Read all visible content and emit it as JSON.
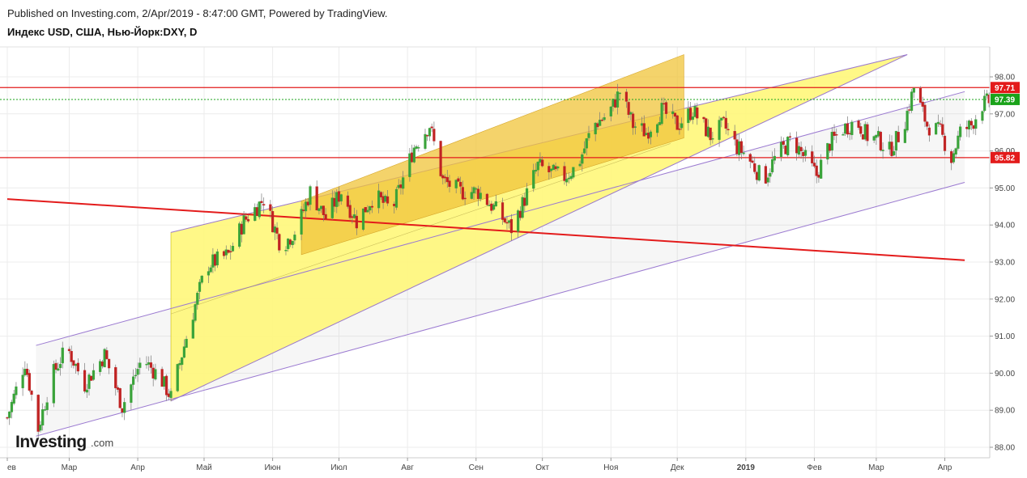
{
  "header": {
    "published": "Published on Investing.com, 2/Apr/2019 - 8:47:00 GMT, Powered by TradingView.",
    "title": "Индекс USD, США, Нью-Йорк:DXY, D"
  },
  "logo": {
    "main": "Investing",
    "domain": ".com"
  },
  "colors": {
    "up": "#3aa33a",
    "down": "#c02323",
    "level": "#e31b1b",
    "channel": "#9b7ad1",
    "triangle_fill": "#fff77a",
    "box_fill": "#f0c43a",
    "current_price": "#1aa31a"
  },
  "chart_data": {
    "type": "candlestick",
    "symbol": "DXY",
    "timeframe": "D",
    "ylim": [
      87.8,
      98.6
    ],
    "y_ticks": [
      "88.00",
      "89.00",
      "90.00",
      "91.00",
      "92.00",
      "93.00",
      "94.00",
      "95.00",
      "96.00",
      "97.00",
      "98.00"
    ],
    "x_ticks": [
      {
        "label": "ев",
        "day": 0
      },
      {
        "label": "Мар",
        "day": 28
      },
      {
        "label": "Апр",
        "day": 59
      },
      {
        "label": "Май",
        "day": 89
      },
      {
        "label": "Июн",
        "day": 120
      },
      {
        "label": "Июл",
        "day": 150
      },
      {
        "label": "Авг",
        "day": 181
      },
      {
        "label": "Сен",
        "day": 212
      },
      {
        "label": "Окт",
        "day": 242
      },
      {
        "label": "Ноя",
        "day": 273
      },
      {
        "label": "Дек",
        "day": 303
      },
      {
        "label": "2019",
        "day": 334
      },
      {
        "label": "Фев",
        "day": 365
      },
      {
        "label": "Мар",
        "day": 393
      },
      {
        "label": "Апр",
        "day": 424
      }
    ],
    "price_tags": [
      {
        "label": "97.71",
        "value": 97.71,
        "color": "#e31b1b"
      },
      {
        "label": "97.39",
        "value": 97.39,
        "color": "#1aa31a"
      },
      {
        "label": "95.82",
        "value": 95.82,
        "color": "#e31b1b"
      }
    ],
    "levels": [
      {
        "name": "resistance",
        "value": 97.71
      },
      {
        "name": "support",
        "value": 95.82
      },
      {
        "name": "current",
        "value": 97.39
      }
    ],
    "trend_lines": [
      {
        "name": "declining-trend",
        "from": {
          "day": 0,
          "value": 94.7
        },
        "to": {
          "day": 433,
          "value": 93.05
        }
      },
      {
        "name": "channel-lower",
        "from": {
          "day": 13,
          "value": 88.3
        },
        "to": {
          "day": 433,
          "value": 95.15
        }
      },
      {
        "name": "channel-upper",
        "from": {
          "day": 13,
          "value": 90.75
        },
        "to": {
          "day": 433,
          "value": 97.6
        }
      }
    ],
    "triangle": {
      "apex": {
        "day": 407,
        "value": 98.6
      },
      "top_start": {
        "day": 74,
        "value": 93.8
      },
      "bottom_start": {
        "day": 74,
        "value": 89.25
      }
    },
    "box": {
      "a": {
        "day": 133,
        "value": 93.2
      },
      "b": {
        "day": 133,
        "value": 94.65
      },
      "c": {
        "day": 306,
        "value": 98.6
      },
      "d": {
        "day": 306,
        "value": 96.35
      }
    },
    "path_keys": [
      [
        0,
        88.8
      ],
      [
        8,
        90.3
      ],
      [
        14,
        88.5
      ],
      [
        20,
        89.9
      ],
      [
        27,
        90.7
      ],
      [
        35,
        89.7
      ],
      [
        44,
        90.5
      ],
      [
        52,
        89.1
      ],
      [
        61,
        90.4
      ],
      [
        69,
        89.9
      ],
      [
        74,
        89.35
      ],
      [
        82,
        91.2
      ],
      [
        90,
        92.9
      ],
      [
        100,
        93.2
      ],
      [
        107,
        94.1
      ],
      [
        116,
        94.7
      ],
      [
        124,
        93.4
      ],
      [
        131,
        93.9
      ],
      [
        137,
        94.9
      ],
      [
        144,
        94.2
      ],
      [
        151,
        94.9
      ],
      [
        158,
        94.1
      ],
      [
        166,
        94.8
      ],
      [
        174,
        94.4
      ],
      [
        184,
        96.1
      ],
      [
        191,
        96.7
      ],
      [
        197,
        95.2
      ],
      [
        205,
        94.9
      ],
      [
        213,
        94.9
      ],
      [
        221,
        94.4
      ],
      [
        228,
        93.9
      ],
      [
        234,
        94.7
      ],
      [
        240,
        95.6
      ],
      [
        246,
        95.4
      ],
      [
        252,
        95.3
      ],
      [
        258,
        95.6
      ],
      [
        265,
        96.7
      ],
      [
        272,
        97.0
      ],
      [
        277,
        97.6
      ],
      [
        283,
        96.7
      ],
      [
        289,
        96.5
      ],
      [
        296,
        97.1
      ],
      [
        303,
        96.7
      ],
      [
        310,
        97.1
      ],
      [
        318,
        96.4
      ],
      [
        324,
        96.7
      ],
      [
        330,
        96.1
      ],
      [
        334,
        95.9
      ],
      [
        342,
        95.2
      ],
      [
        348,
        95.9
      ],
      [
        355,
        96.3
      ],
      [
        362,
        95.7
      ],
      [
        366,
        95.35
      ],
      [
        372,
        96.2
      ],
      [
        378,
        96.6
      ],
      [
        384,
        96.8
      ],
      [
        389,
        96.4
      ],
      [
        394,
        96.3
      ],
      [
        399,
        96.0
      ],
      [
        405,
        96.6
      ],
      [
        410,
        97.7
      ],
      [
        416,
        96.7
      ],
      [
        422,
        96.5
      ],
      [
        427,
        95.8
      ],
      [
        431,
        96.5
      ],
      [
        436,
        96.7
      ],
      [
        441,
        97.25
      ],
      [
        446,
        97.39
      ]
    ]
  }
}
